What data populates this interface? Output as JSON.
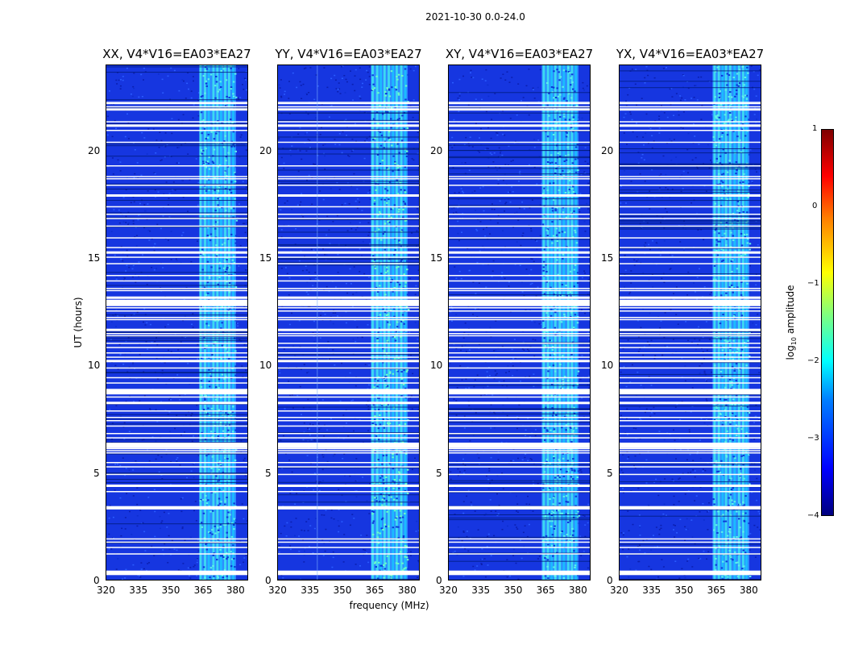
{
  "chart_data": {
    "type": "heatmap",
    "title": "2021-10-30 0.0-24.0",
    "xlabel": "frequency (MHz)",
    "ylabel": "UT (hours)",
    "xlim": [
      320,
      386
    ],
    "ylim": [
      0,
      24
    ],
    "xticks": [
      "320",
      "335",
      "350",
      "365",
      "380"
    ],
    "yticks": [
      "0",
      "5",
      "10",
      "15",
      "20"
    ],
    "panels": [
      {
        "title": "XX, V4*V16=EA03*EA27"
      },
      {
        "title": "YY, V4*V16=EA03*EA27"
      },
      {
        "title": "XY, V4*V16=EA03*EA27"
      },
      {
        "title": "YX, V4*V16=EA03*EA27"
      }
    ],
    "colorbar": {
      "label": "log10 amplitude",
      "label_base": "log",
      "label_sub": "10",
      "label_rest": " amplitude",
      "range": [
        -4,
        1
      ],
      "ticks": [
        "1",
        "0",
        "−1",
        "−2",
        "−3",
        "−4"
      ],
      "colormap": "jet"
    },
    "features": {
      "bright_band_mhz": [
        363,
        380
      ],
      "flagged_gap_hours": [
        0.4,
        1.3,
        1.6,
        1.85,
        2.0,
        3.4,
        4.2,
        4.5,
        5.0,
        5.35,
        5.55,
        6.0,
        6.1,
        6.2,
        6.35,
        6.7,
        6.9,
        7.25,
        7.5,
        7.65,
        7.95,
        8.35,
        8.6,
        8.75,
        8.9,
        9.25,
        9.5,
        9.95,
        10.3,
        10.45,
        10.65,
        10.9,
        11.1,
        11.45,
        11.55,
        11.75,
        12.2,
        12.3,
        12.6,
        12.75,
        12.9,
        13.0,
        13.25,
        13.55,
        13.65,
        14.0,
        14.25,
        14.8,
        15.1,
        15.35,
        15.55,
        16.0,
        16.55,
        16.9,
        17.1,
        17.45,
        18.0,
        18.45,
        18.75,
        18.85,
        19.35,
        20.45,
        21.0,
        21.25,
        21.4,
        21.95,
        22.0,
        22.1,
        22.25,
        22.3
      ]
    }
  }
}
